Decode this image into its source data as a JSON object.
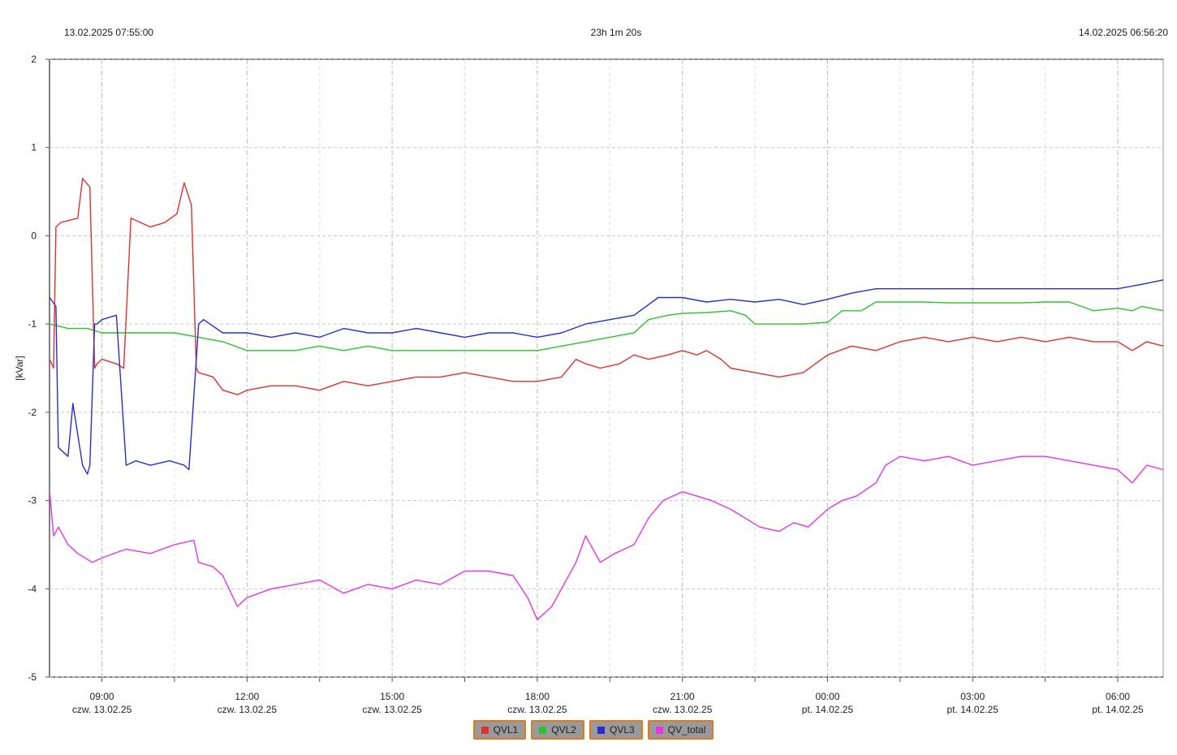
{
  "header": {
    "start": "13.02.2025 07:55:00",
    "duration": "23h 1m 20s",
    "end": "14.02.2025 06:56:20"
  },
  "chart_data": {
    "type": "line",
    "ylabel": "[kVar]",
    "ylim": [
      -5,
      2
    ],
    "yticks": [
      2,
      1,
      0,
      -1,
      -2,
      -3,
      -4,
      -5
    ],
    "xlim_hours": [
      7.9167,
      30.939
    ],
    "xticks": [
      {
        "h": 9,
        "time": "09:00",
        "day": "czw. 13.02.25"
      },
      {
        "h": 12,
        "time": "12:00",
        "day": "czw. 13.02.25"
      },
      {
        "h": 15,
        "time": "15:00",
        "day": "czw. 13.02.25"
      },
      {
        "h": 18,
        "time": "18:00",
        "day": "czw. 13.02.25"
      },
      {
        "h": 21,
        "time": "21:00",
        "day": "czw. 13.02.25"
      },
      {
        "h": 24,
        "time": "00:00",
        "day": "pt. 14.02.25"
      },
      {
        "h": 27,
        "time": "03:00",
        "day": "pt. 14.02.25"
      },
      {
        "h": 30,
        "time": "06:00",
        "day": "pt. 14.02.25"
      }
    ],
    "grid": true,
    "legend_position": "bottom-center",
    "series": [
      {
        "name": "QVL1",
        "color": "#e03030",
        "x": [
          7.92,
          8.0,
          8.05,
          8.15,
          8.5,
          8.6,
          8.75,
          8.85,
          8.9,
          9.0,
          9.3,
          9.45,
          9.6,
          9.8,
          10.0,
          10.3,
          10.55,
          10.7,
          10.85,
          10.95,
          11.0,
          11.3,
          11.5,
          11.8,
          12.0,
          12.5,
          13.0,
          13.5,
          14.0,
          14.5,
          15.0,
          15.5,
          16.0,
          16.5,
          17.0,
          17.5,
          18.0,
          18.5,
          18.8,
          19.0,
          19.3,
          19.7,
          20.0,
          20.3,
          20.7,
          21.0,
          21.3,
          21.5,
          21.8,
          22.0,
          22.5,
          23.0,
          23.5,
          24.0,
          24.5,
          25.0,
          25.5,
          26.0,
          26.5,
          27.0,
          27.5,
          28.0,
          28.5,
          29.0,
          29.5,
          30.0,
          30.3,
          30.6,
          30.94
        ],
        "y": [
          -1.4,
          -1.5,
          0.1,
          0.15,
          0.2,
          0.65,
          0.55,
          -1.5,
          -1.45,
          -1.4,
          -1.45,
          -1.5,
          0.2,
          0.15,
          0.1,
          0.15,
          0.25,
          0.6,
          0.35,
          -1.5,
          -1.55,
          -1.6,
          -1.75,
          -1.8,
          -1.75,
          -1.7,
          -1.7,
          -1.75,
          -1.65,
          -1.7,
          -1.65,
          -1.6,
          -1.6,
          -1.55,
          -1.6,
          -1.65,
          -1.65,
          -1.6,
          -1.4,
          -1.45,
          -1.5,
          -1.45,
          -1.35,
          -1.4,
          -1.35,
          -1.3,
          -1.35,
          -1.3,
          -1.4,
          -1.5,
          -1.55,
          -1.6,
          -1.55,
          -1.35,
          -1.25,
          -1.3,
          -1.2,
          -1.15,
          -1.2,
          -1.15,
          -1.2,
          -1.15,
          -1.2,
          -1.15,
          -1.2,
          -1.2,
          -1.3,
          -1.2,
          -1.25
        ]
      },
      {
        "name": "QVL2",
        "color": "#30c030",
        "x": [
          7.92,
          8.3,
          8.7,
          9.0,
          9.5,
          10.0,
          10.5,
          11.0,
          11.5,
          12.0,
          12.5,
          13.0,
          13.5,
          14.0,
          14.5,
          15.0,
          15.5,
          16.0,
          16.5,
          17.0,
          17.5,
          18.0,
          18.5,
          19.0,
          19.5,
          20.0,
          20.3,
          20.7,
          21.0,
          21.5,
          22.0,
          22.3,
          22.5,
          23.0,
          23.5,
          24.0,
          24.3,
          24.7,
          25.0,
          25.5,
          26.0,
          26.5,
          27.0,
          27.5,
          28.0,
          28.5,
          29.0,
          29.5,
          30.0,
          30.3,
          30.5,
          30.94
        ],
        "y": [
          -1.0,
          -1.05,
          -1.05,
          -1.1,
          -1.1,
          -1.1,
          -1.1,
          -1.15,
          -1.2,
          -1.3,
          -1.3,
          -1.3,
          -1.25,
          -1.3,
          -1.25,
          -1.3,
          -1.3,
          -1.3,
          -1.3,
          -1.3,
          -1.3,
          -1.3,
          -1.25,
          -1.2,
          -1.15,
          -1.1,
          -0.95,
          -0.9,
          -0.88,
          -0.87,
          -0.85,
          -0.9,
          -1.0,
          -1.0,
          -1.0,
          -0.98,
          -0.85,
          -0.85,
          -0.75,
          -0.75,
          -0.75,
          -0.76,
          -0.76,
          -0.76,
          -0.76,
          -0.75,
          -0.75,
          -0.85,
          -0.82,
          -0.85,
          -0.8,
          -0.85
        ]
      },
      {
        "name": "QVL3",
        "color": "#2c2ccc",
        "x": [
          7.92,
          8.05,
          8.1,
          8.3,
          8.4,
          8.6,
          8.7,
          8.75,
          8.85,
          8.9,
          9.0,
          9.3,
          9.5,
          9.7,
          10.0,
          10.4,
          10.7,
          10.8,
          11.0,
          11.1,
          11.5,
          12.0,
          12.5,
          13.0,
          13.5,
          14.0,
          14.5,
          15.0,
          15.5,
          16.0,
          16.5,
          17.0,
          17.5,
          18.0,
          18.5,
          19.0,
          19.5,
          20.0,
          20.5,
          21.0,
          21.5,
          22.0,
          22.5,
          23.0,
          23.5,
          24.0,
          24.5,
          25.0,
          25.5,
          26.0,
          26.5,
          27.0,
          27.5,
          28.0,
          28.5,
          29.0,
          29.5,
          30.0,
          30.5,
          30.94
        ],
        "y": [
          -0.7,
          -0.8,
          -2.4,
          -2.5,
          -1.9,
          -2.6,
          -2.7,
          -2.6,
          -1.0,
          -1.0,
          -0.95,
          -0.9,
          -2.6,
          -2.55,
          -2.6,
          -2.55,
          -2.6,
          -2.65,
          -1.0,
          -0.95,
          -1.1,
          -1.1,
          -1.15,
          -1.1,
          -1.15,
          -1.05,
          -1.1,
          -1.1,
          -1.05,
          -1.1,
          -1.15,
          -1.1,
          -1.1,
          -1.15,
          -1.1,
          -1.0,
          -0.95,
          -0.9,
          -0.7,
          -0.7,
          -0.75,
          -0.72,
          -0.75,
          -0.72,
          -0.78,
          -0.72,
          -0.65,
          -0.6,
          -0.6,
          -0.6,
          -0.6,
          -0.6,
          -0.6,
          -0.6,
          -0.6,
          -0.6,
          -0.6,
          -0.6,
          -0.55,
          -0.5
        ]
      },
      {
        "name": "QV_total",
        "color": "#e833e8",
        "x": [
          7.92,
          8.0,
          8.1,
          8.3,
          8.5,
          8.8,
          9.0,
          9.5,
          10.0,
          10.5,
          10.9,
          11.0,
          11.3,
          11.5,
          11.8,
          12.0,
          12.5,
          13.0,
          13.5,
          14.0,
          14.5,
          15.0,
          15.5,
          16.0,
          16.5,
          17.0,
          17.5,
          17.8,
          18.0,
          18.3,
          18.6,
          18.8,
          19.0,
          19.3,
          19.6,
          20.0,
          20.3,
          20.6,
          21.0,
          21.3,
          21.6,
          22.0,
          22.3,
          22.6,
          23.0,
          23.3,
          23.6,
          24.0,
          24.3,
          24.6,
          25.0,
          25.2,
          25.5,
          26.0,
          26.5,
          27.0,
          27.5,
          28.0,
          28.5,
          29.0,
          29.5,
          30.0,
          30.3,
          30.6,
          30.94
        ],
        "y": [
          -2.9,
          -3.4,
          -3.3,
          -3.5,
          -3.6,
          -3.7,
          -3.65,
          -3.55,
          -3.6,
          -3.5,
          -3.45,
          -3.7,
          -3.75,
          -3.85,
          -4.2,
          -4.1,
          -4.0,
          -3.95,
          -3.9,
          -4.05,
          -3.95,
          -4.0,
          -3.9,
          -3.95,
          -3.8,
          -3.8,
          -3.85,
          -4.1,
          -4.35,
          -4.2,
          -3.9,
          -3.7,
          -3.4,
          -3.7,
          -3.6,
          -3.5,
          -3.2,
          -3.0,
          -2.9,
          -2.95,
          -3.0,
          -3.1,
          -3.2,
          -3.3,
          -3.35,
          -3.25,
          -3.3,
          -3.1,
          -3.0,
          -2.95,
          -2.8,
          -2.6,
          -2.5,
          -2.55,
          -2.5,
          -2.6,
          -2.55,
          -2.5,
          -2.5,
          -2.55,
          -2.6,
          -2.65,
          -2.8,
          -2.6,
          -2.65
        ]
      }
    ]
  },
  "legend": [
    {
      "label": "QVL1",
      "color": "#e03030"
    },
    {
      "label": "QVL2",
      "color": "#30c030"
    },
    {
      "label": "QVL3",
      "color": "#2c2ccc"
    },
    {
      "label": "QV_total",
      "color": "#e833e8"
    }
  ]
}
